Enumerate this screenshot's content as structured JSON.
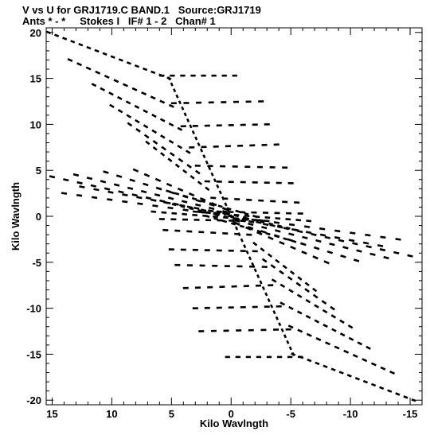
{
  "chart_data": {
    "type": "scatter",
    "title_line_1": "V vs U for GRJ1719.C BAND.1   Source:GRJ1719",
    "title_line_2": "Ants * - *     Stokes I   IF# 1 - 2   Chan# 1",
    "xlabel": "Kilo Wavlngth",
    "ylabel": "Kilo Wavlngth",
    "xlim": [
      15.5,
      -16
    ],
    "ylim": [
      -20.5,
      20.5
    ],
    "x_reversed": true,
    "x_ticks": [
      15,
      10,
      5,
      0,
      -5,
      -10,
      -15
    ],
    "y_ticks": [
      20,
      15,
      10,
      5,
      0,
      -5,
      -10,
      -15,
      -20
    ],
    "grid": false,
    "marker_color": "#000000",
    "series": [
      {
        "start": [
          15.3,
          20.0
        ],
        "end": [
          5.2,
          15.0
        ],
        "n": 16
      },
      {
        "start": [
          5.2,
          15.0
        ],
        "end": [
          0.0,
          0.0
        ],
        "n": 24
      },
      {
        "start": [
          13.5,
          17.0
        ],
        "end": [
          5.0,
          12.0
        ],
        "n": 12
      },
      {
        "start": [
          11.5,
          14.3
        ],
        "end": [
          4.3,
          9.5
        ],
        "n": 11
      },
      {
        "start": [
          10.0,
          12.0
        ],
        "end": [
          3.6,
          7.0
        ],
        "n": 10
      },
      {
        "start": [
          8.5,
          10.0
        ],
        "end": [
          2.8,
          4.8
        ],
        "n": 9
      },
      {
        "start": [
          7.0,
          8.0
        ],
        "end": [
          2.0,
          3.0
        ],
        "n": 9
      },
      {
        "start": [
          15.0,
          4.3
        ],
        "end": [
          0.0,
          0.0
        ],
        "n": 14
      },
      {
        "start": [
          13.0,
          4.5
        ],
        "end": [
          0.5,
          0.5
        ],
        "n": 12
      },
      {
        "start": [
          10.5,
          4.8
        ],
        "end": [
          0.5,
          0.8
        ],
        "n": 10
      },
      {
        "start": [
          12.5,
          3.2
        ],
        "end": [
          0.5,
          0.3
        ],
        "n": 11
      },
      {
        "start": [
          8.0,
          5.0
        ],
        "end": [
          0.5,
          0.8
        ],
        "n": 9
      },
      {
        "start": [
          14.0,
          2.5
        ],
        "end": [
          0.0,
          0.0
        ],
        "n": 12
      },
      {
        "start": [
          6.0,
          3.0
        ],
        "end": [
          -2.0,
          0.0
        ],
        "n": 12
      },
      {
        "start": [
          5.5,
          1.5
        ],
        "end": [
          -1.0,
          -0.5
        ],
        "n": 10
      },
      {
        "start": [
          6.5,
          0.5
        ],
        "end": [
          -3.0,
          -0.5
        ],
        "n": 12
      },
      {
        "start": [
          5.8,
          15.3
        ],
        "end": [
          -0.3,
          15.3
        ],
        "n": 8
      },
      {
        "start": [
          4.8,
          12.3
        ],
        "end": [
          -2.5,
          12.5
        ],
        "n": 8
      },
      {
        "start": [
          4.0,
          9.8
        ],
        "end": [
          -3.0,
          10.0
        ],
        "n": 8
      },
      {
        "start": [
          3.3,
          7.5
        ],
        "end": [
          -3.8,
          7.8
        ],
        "n": 8
      },
      {
        "start": [
          2.8,
          5.5
        ],
        "end": [
          -4.5,
          5.3
        ],
        "n": 8
      },
      {
        "start": [
          2.0,
          3.8
        ],
        "end": [
          -5.0,
          3.6
        ],
        "n": 8
      },
      {
        "start": [
          1.5,
          2.0
        ],
        "end": [
          -5.5,
          1.5
        ],
        "n": 8
      },
      {
        "start": [
          1.0,
          0.5
        ],
        "end": [
          -5.8,
          0.3
        ],
        "n": 8
      },
      {
        "start": [
          -15.3,
          -20.0
        ],
        "end": [
          -5.2,
          -15.0
        ],
        "n": 16
      },
      {
        "start": [
          -5.2,
          -15.0
        ],
        "end": [
          0.0,
          0.0
        ],
        "n": 24
      },
      {
        "start": [
          -13.5,
          -17.0
        ],
        "end": [
          -5.0,
          -12.0
        ],
        "n": 12
      },
      {
        "start": [
          -11.5,
          -14.3
        ],
        "end": [
          -4.3,
          -9.5
        ],
        "n": 11
      },
      {
        "start": [
          -10.0,
          -12.0
        ],
        "end": [
          -3.6,
          -7.0
        ],
        "n": 10
      },
      {
        "start": [
          -8.5,
          -10.0
        ],
        "end": [
          -2.8,
          -4.8
        ],
        "n": 9
      },
      {
        "start": [
          -7.0,
          -8.0
        ],
        "end": [
          -2.0,
          -3.0
        ],
        "n": 9
      },
      {
        "start": [
          -15.0,
          -4.3
        ],
        "end": [
          0.0,
          0.0
        ],
        "n": 14
      },
      {
        "start": [
          -13.0,
          -4.5
        ],
        "end": [
          -0.5,
          -0.5
        ],
        "n": 12
      },
      {
        "start": [
          -10.5,
          -4.8
        ],
        "end": [
          -0.5,
          -0.8
        ],
        "n": 10
      },
      {
        "start": [
          -12.5,
          -3.2
        ],
        "end": [
          -0.5,
          -0.3
        ],
        "n": 11
      },
      {
        "start": [
          -8.0,
          -5.0
        ],
        "end": [
          -0.5,
          -0.8
        ],
        "n": 9
      },
      {
        "start": [
          -14.0,
          -2.5
        ],
        "end": [
          0.0,
          0.0
        ],
        "n": 12
      },
      {
        "start": [
          -6.0,
          -3.0
        ],
        "end": [
          2.0,
          0.0
        ],
        "n": 12
      },
      {
        "start": [
          -5.5,
          -1.5
        ],
        "end": [
          1.0,
          0.5
        ],
        "n": 10
      },
      {
        "start": [
          -6.5,
          -0.5
        ],
        "end": [
          3.0,
          0.5
        ],
        "n": 12
      },
      {
        "start": [
          -5.8,
          -15.3
        ],
        "end": [
          0.3,
          -15.3
        ],
        "n": 8
      },
      {
        "start": [
          -4.8,
          -12.3
        ],
        "end": [
          2.5,
          -12.5
        ],
        "n": 8
      },
      {
        "start": [
          -4.0,
          -9.8
        ],
        "end": [
          3.0,
          -10.0
        ],
        "n": 8
      },
      {
        "start": [
          -3.3,
          -7.5
        ],
        "end": [
          3.8,
          -7.8
        ],
        "n": 8
      },
      {
        "start": [
          -2.8,
          -5.5
        ],
        "end": [
          4.5,
          -5.3
        ],
        "n": 8
      },
      {
        "start": [
          -2.0,
          -3.8
        ],
        "end": [
          5.0,
          -3.6
        ],
        "n": 8
      },
      {
        "start": [
          -1.5,
          -2.0
        ],
        "end": [
          5.5,
          -1.5
        ],
        "n": 8
      },
      {
        "start": [
          -1.0,
          -0.5
        ],
        "end": [
          5.8,
          -0.3
        ],
        "n": 8
      }
    ]
  }
}
